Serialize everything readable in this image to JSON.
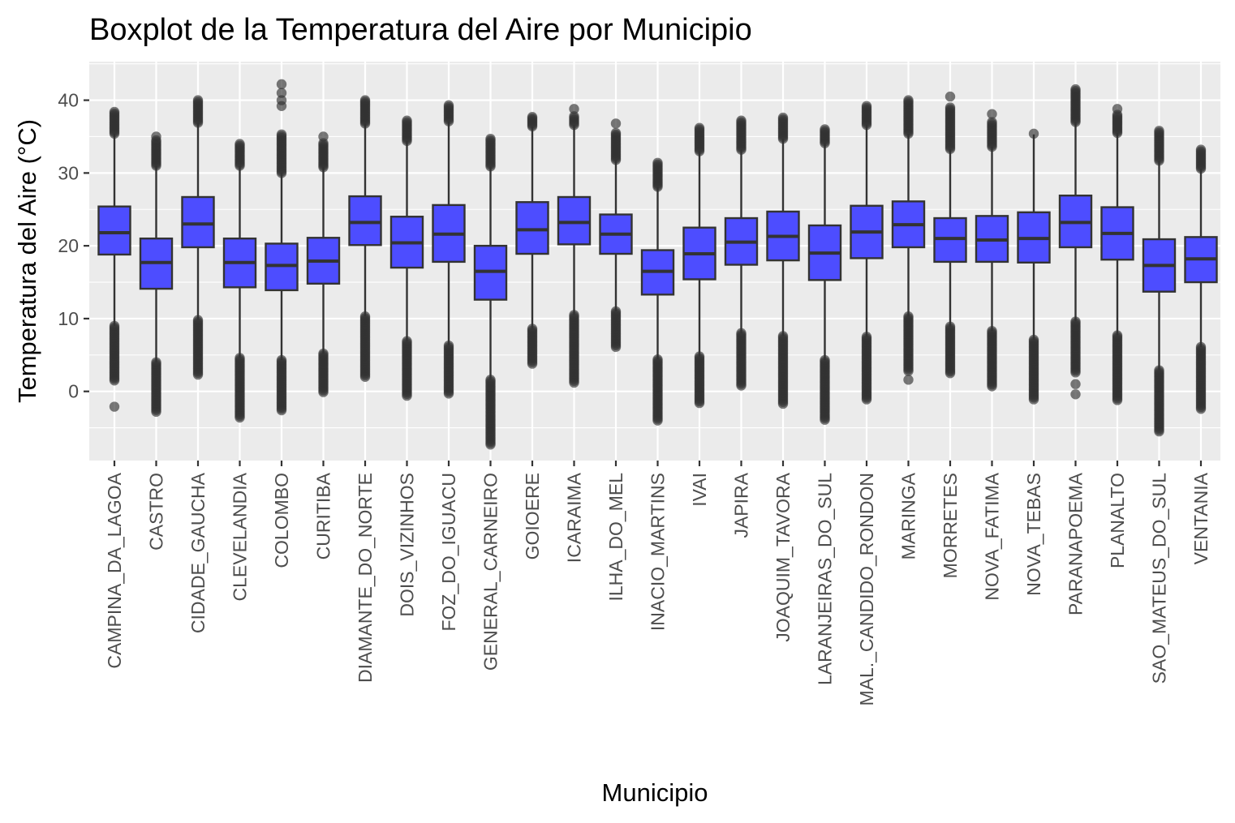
{
  "chart_data": {
    "type": "boxplot",
    "title": "Boxplot de la Temperatura del Aire por Municipio",
    "xlabel": "Municipio",
    "ylabel": "Temperatura del Aire (°C)",
    "ylim": [
      -9.5,
      45.3
    ],
    "yticks": [
      0,
      10,
      20,
      30,
      40
    ],
    "grid": true,
    "colors": {
      "panel": "#EBEBEB",
      "grid": "#FFFFFF",
      "box_fill": "#4D4DFF",
      "line": "#333333",
      "outlier": "#333333"
    },
    "categories": [
      "CAMPINA_DA_LAGOA",
      "CASTRO",
      "CIDADE_GAUCHA",
      "CLEVELANDIA",
      "COLOMBO",
      "CURITIBA",
      "DIAMANTE_DO_NORTE",
      "DOIS_VIZINHOS",
      "FOZ_DO_IGUACU",
      "GENERAL_CARNEIRO",
      "GOIOERE",
      "ICARAIMA",
      "ILHA_DO_MEL",
      "INACIO_MARTINS",
      "IVAI",
      "JAPIRA",
      "JOAQUIM_TAVORA",
      "LARANJEIRAS_DO_SUL",
      "MAL._CANDIDO_RONDON",
      "MARINGA",
      "MORRETES",
      "NOVA_FATIMA",
      "NOVA_TEBAS",
      "PARANAPOEMA",
      "PLANALTO",
      "SAO_MATEUS_DO_SUL",
      "VENTANIA"
    ],
    "boxes": [
      {
        "q1": 18.8,
        "median": 21.8,
        "q3": 25.4,
        "whisker_low": 9.0,
        "whisker_high": 35.4,
        "out_low": [
          1.5,
          9.0
        ],
        "out_high": [
          35.4,
          38.4
        ],
        "extra_outliers": [
          -2.1
        ]
      },
      {
        "q1": 14.1,
        "median": 17.7,
        "q3": 21.0,
        "whisker_low": 4.0,
        "whisker_high": 31.0,
        "out_low": [
          -2.8,
          4.0
        ],
        "out_high": [
          31.0,
          34.5
        ],
        "extra_outliers": [
          35.0
        ]
      },
      {
        "q1": 19.8,
        "median": 23.0,
        "q3": 26.7,
        "whisker_low": 9.8,
        "whisker_high": 36.9,
        "out_low": [
          2.3,
          9.8
        ],
        "out_high": [
          36.9,
          40.0
        ],
        "extra_outliers": []
      },
      {
        "q1": 14.3,
        "median": 17.7,
        "q3": 21.0,
        "whisker_low": 4.6,
        "whisker_high": 31.0,
        "out_low": [
          -3.6,
          4.6
        ],
        "out_high": [
          31.0,
          34.0
        ],
        "extra_outliers": []
      },
      {
        "q1": 13.9,
        "median": 17.3,
        "q3": 20.3,
        "whisker_low": 4.3,
        "whisker_high": 30.0,
        "out_low": [
          -2.6,
          4.3
        ],
        "out_high": [
          30.0,
          35.3
        ],
        "extra_outliers": [
          39.2,
          40.0,
          41.0,
          42.2
        ]
      },
      {
        "q1": 14.8,
        "median": 17.9,
        "q3": 21.1,
        "whisker_low": 5.2,
        "whisker_high": 30.8,
        "out_low": [
          -0.1,
          5.2
        ],
        "out_high": [
          30.8,
          34.1
        ],
        "extra_outliers": [
          35.0
        ]
      },
      {
        "q1": 20.1,
        "median": 23.2,
        "q3": 26.8,
        "whisker_low": 10.3,
        "whisker_high": 36.8,
        "out_low": [
          2.0,
          10.3
        ],
        "out_high": [
          36.8,
          40.0
        ],
        "extra_outliers": []
      },
      {
        "q1": 17.0,
        "median": 20.4,
        "q3": 24.0,
        "whisker_low": 6.9,
        "whisker_high": 34.4,
        "out_low": [
          -0.6,
          6.9
        ],
        "out_high": [
          34.4,
          37.2
        ],
        "extra_outliers": []
      },
      {
        "q1": 17.8,
        "median": 21.6,
        "q3": 25.6,
        "whisker_low": 6.3,
        "whisker_high": 37.1,
        "out_low": [
          -0.3,
          6.3
        ],
        "out_high": [
          37.1,
          39.3
        ],
        "extra_outliers": []
      },
      {
        "q1": 12.6,
        "median": 16.5,
        "q3": 20.0,
        "whisker_low": 1.6,
        "whisker_high": 30.9,
        "out_low": [
          -7.3,
          1.6
        ],
        "out_high": [
          30.9,
          34.7
        ],
        "extra_outliers": []
      },
      {
        "q1": 18.9,
        "median": 22.2,
        "q3": 26.0,
        "whisker_low": 8.6,
        "whisker_high": 36.4,
        "out_low": [
          3.8,
          8.6
        ],
        "out_high": [
          36.4,
          37.7
        ],
        "extra_outliers": []
      },
      {
        "q1": 20.2,
        "median": 23.2,
        "q3": 26.7,
        "whisker_low": 10.5,
        "whisker_high": 36.6,
        "out_low": [
          1.2,
          10.5
        ],
        "out_high": [
          36.6,
          37.8
        ],
        "extra_outliers": [
          38.8
        ]
      },
      {
        "q1": 18.9,
        "median": 21.6,
        "q3": 24.3,
        "whisker_low": 11.0,
        "whisker_high": 31.8,
        "out_low": [
          6.1,
          11.0
        ],
        "out_high": [
          31.8,
          35.5
        ],
        "extra_outliers": [
          36.8
        ]
      },
      {
        "q1": 13.3,
        "median": 16.5,
        "q3": 19.4,
        "whisker_low": 4.4,
        "whisker_high": 28.1,
        "out_low": [
          -4.0,
          4.4
        ],
        "out_high": [
          28.1,
          31.4
        ],
        "extra_outliers": []
      },
      {
        "q1": 15.4,
        "median": 18.9,
        "q3": 22.5,
        "whisker_low": 4.8,
        "whisker_high": 33.0,
        "out_low": [
          -1.6,
          4.8
        ],
        "out_high": [
          33.0,
          36.2
        ],
        "extra_outliers": []
      },
      {
        "q1": 17.4,
        "median": 20.5,
        "q3": 23.8,
        "whisker_low": 8.0,
        "whisker_high": 33.2,
        "out_low": [
          0.8,
          8.0
        ],
        "out_high": [
          33.2,
          37.2
        ],
        "extra_outliers": []
      },
      {
        "q1": 18.0,
        "median": 21.3,
        "q3": 24.7,
        "whisker_low": 7.6,
        "whisker_high": 34.7,
        "out_low": [
          -1.7,
          7.6
        ],
        "out_high": [
          34.7,
          37.6
        ],
        "extra_outliers": []
      },
      {
        "q1": 15.3,
        "median": 19.0,
        "q3": 22.8,
        "whisker_low": 4.3,
        "whisker_high": 34.1,
        "out_low": [
          -3.9,
          4.3
        ],
        "out_high": [
          34.1,
          36.0
        ],
        "extra_outliers": []
      },
      {
        "q1": 18.3,
        "median": 21.9,
        "q3": 25.5,
        "whisker_low": 7.5,
        "whisker_high": 36.6,
        "out_low": [
          -1.1,
          7.5
        ],
        "out_high": [
          36.6,
          39.2
        ],
        "extra_outliers": []
      },
      {
        "q1": 19.8,
        "median": 22.9,
        "q3": 26.1,
        "whisker_low": 10.3,
        "whisker_high": 35.4,
        "out_low": [
          2.8,
          10.3
        ],
        "out_high": [
          35.4,
          40.0
        ],
        "extra_outliers": [
          1.6
        ]
      },
      {
        "q1": 17.8,
        "median": 21.0,
        "q3": 23.8,
        "whisker_low": 8.9,
        "whisker_high": 33.3,
        "out_low": [
          2.5,
          8.9
        ],
        "out_high": [
          33.3,
          39.0
        ],
        "extra_outliers": [
          40.5
        ]
      },
      {
        "q1": 17.8,
        "median": 20.8,
        "q3": 24.1,
        "whisker_low": 8.3,
        "whisker_high": 33.6,
        "out_low": [
          0.7,
          8.3
        ],
        "out_high": [
          33.6,
          37.0
        ],
        "extra_outliers": [
          38.1
        ]
      },
      {
        "q1": 17.7,
        "median": 21.0,
        "q3": 24.6,
        "whisker_low": 7.1,
        "whisker_high": 35.3,
        "out_low": [
          -1.1,
          7.1
        ],
        "out_high": [],
        "extra_outliers": [
          35.4
        ]
      },
      {
        "q1": 19.8,
        "median": 23.2,
        "q3": 26.9,
        "whisker_low": 9.6,
        "whisker_high": 37.0,
        "out_low": [
          2.6,
          9.6
        ],
        "out_high": [
          37.0,
          41.5
        ],
        "extra_outliers": [
          1.0,
          -0.4
        ]
      },
      {
        "q1": 18.1,
        "median": 21.7,
        "q3": 25.3,
        "whisker_low": 7.7,
        "whisker_high": 35.5,
        "out_low": [
          -1.2,
          7.7
        ],
        "out_high": [
          35.5,
          38.0
        ],
        "extra_outliers": [
          38.8
        ]
      },
      {
        "q1": 13.7,
        "median": 17.3,
        "q3": 20.9,
        "whisker_low": 2.9,
        "whisker_high": 31.7,
        "out_low": [
          -5.5,
          2.9
        ],
        "out_high": [
          31.7,
          35.8
        ],
        "extra_outliers": []
      },
      {
        "q1": 15.0,
        "median": 18.2,
        "q3": 21.2,
        "whisker_low": 6.1,
        "whisker_high": 30.6,
        "out_low": [
          -2.4,
          6.1
        ],
        "out_high": [
          30.6,
          33.2
        ],
        "extra_outliers": []
      }
    ]
  }
}
